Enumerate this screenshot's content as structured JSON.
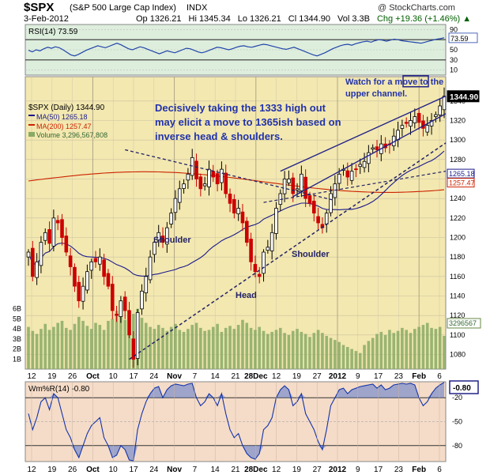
{
  "header": {
    "symbol": "$SPX",
    "name": "(S&P 500 Large Cap Index)",
    "exchange": "INDX",
    "brand": "@ StockCharts.com",
    "date": "3-Feb-2012",
    "open": "Op 1326.21",
    "high": "Hi 1345.34",
    "low": "Lo 1326.21",
    "close": "Cl 1344.90",
    "volume": "Vol 3.3B",
    "change": "Chg +19.36 (+1.46%)",
    "change_arrow": "▲"
  },
  "colors": {
    "up": "#000000",
    "down": "#cc0000",
    "ma50": "#1a1a8c",
    "ma200": "#cc2200",
    "volume": "#88aa66",
    "price_bg": "#f3e8b0",
    "rsi_bg": "#ddeedd",
    "wmr_bg": "#f5dcc8",
    "annotation_text": "#2233aa"
  },
  "chart_data": [
    {
      "type": "line",
      "title": "RSI(14) 73.59",
      "panel": "rsi",
      "ylim": [
        0,
        100
      ],
      "levels": [
        70,
        30
      ],
      "tick_labels": [
        "90",
        "70",
        "50",
        "30",
        "10"
      ],
      "last_value_label": "73.59",
      "values": [
        49,
        46,
        50,
        48,
        52,
        55,
        53,
        56,
        54,
        50,
        45,
        40,
        38,
        41,
        45,
        49,
        52,
        55,
        58,
        56,
        54,
        57,
        60,
        63,
        60,
        56,
        52,
        50,
        53,
        56,
        54,
        51,
        48,
        45,
        42,
        45,
        48,
        46,
        44,
        47,
        50,
        53,
        52,
        49,
        46,
        44,
        46,
        49,
        52,
        55,
        54,
        52,
        50,
        52,
        55,
        57,
        58,
        56,
        55,
        57,
        59,
        61,
        60,
        58,
        56,
        54,
        52,
        51,
        53,
        55,
        52,
        49,
        46,
        43,
        40,
        38,
        41,
        44,
        48,
        52,
        55,
        58,
        60,
        61,
        59,
        62,
        64,
        66,
        67,
        65,
        68,
        70,
        69,
        67,
        69,
        71,
        70,
        68,
        67,
        66,
        65,
        64,
        63,
        65,
        67,
        69,
        71,
        72,
        73.59
      ]
    },
    {
      "type": "line",
      "title": "$SPX (Daily) 1344.90",
      "panel": "price",
      "ylim": [
        1065,
        1365
      ],
      "y_ticks": [
        "1340",
        "1320",
        "1300",
        "1280",
        "1260",
        "1240",
        "1220",
        "1200",
        "1180",
        "1160",
        "1140",
        "1120",
        "1100",
        "1080"
      ],
      "x_ticks": [
        "12",
        "19",
        "26",
        "Oct",
        "10",
        "17",
        "24",
        "Nov",
        "7",
        "14",
        "21",
        "28Dec",
        "12",
        "19",
        "27",
        "2012",
        "9",
        "17",
        "23",
        "Feb",
        "6"
      ],
      "ohlc_close": [
        1185,
        1160,
        1175,
        1195,
        1205,
        1194,
        1220,
        1215,
        1200,
        1185,
        1170,
        1150,
        1135,
        1150,
        1165,
        1175,
        1175,
        1180,
        1160,
        1150,
        1125,
        1120,
        1135,
        1125,
        1100,
        1075,
        1123,
        1145,
        1160,
        1180,
        1195,
        1205,
        1195,
        1210,
        1225,
        1240,
        1250,
        1255,
        1265,
        1282,
        1260,
        1250,
        1255,
        1270,
        1262,
        1255,
        1270,
        1245,
        1235,
        1225,
        1230,
        1215,
        1195,
        1175,
        1165,
        1160,
        1185,
        1190,
        1205,
        1230,
        1245,
        1260,
        1260,
        1245,
        1250,
        1265,
        1240,
        1235,
        1225,
        1215,
        1210,
        1225,
        1245,
        1255,
        1265,
        1270,
        1262,
        1268,
        1270,
        1275,
        1278,
        1287,
        1292,
        1290,
        1296,
        1292,
        1295,
        1304,
        1310,
        1315,
        1317,
        1320,
        1324,
        1318,
        1312,
        1315,
        1320,
        1326,
        1335,
        1344.9
      ],
      "ma50_label": "MA(50) 1265.18",
      "ma200_label": "MA(200) 1257.47",
      "volume_label": "Volume 3,296,567,808",
      "ma50_last": "1265.18",
      "ma200_last": "1257.47",
      "price_last": "1344.90",
      "volume_last": "3296567",
      "volume_ticks": [
        "6B",
        "5B",
        "4B",
        "3B",
        "2B",
        "1B"
      ],
      "volume_values_billion": [
        4.2,
        3.8,
        3.5,
        4.0,
        4.5,
        3.9,
        4.2,
        4.6,
        4.8,
        4.1,
        3.9,
        4.5,
        5.2,
        4.8,
        4.3,
        4.0,
        4.6,
        4.4,
        3.9,
        4.8,
        5.0,
        5.8,
        5.3,
        4.9,
        4.7,
        5.5,
        6.0,
        5.1,
        4.6,
        4.2,
        4.0,
        4.4,
        4.1,
        3.8,
        4.2,
        4.5,
        3.9,
        3.7,
        4.0,
        4.4,
        4.6,
        4.1,
        3.8,
        3.9,
        4.2,
        4.5,
        3.7,
        4.1,
        4.3,
        4.0,
        4.4,
        4.9,
        4.6,
        4.1,
        3.9,
        4.2,
        3.8,
        3.5,
        3.7,
        3.9,
        4.1,
        3.6,
        3.4,
        3.8,
        4.0,
        3.7,
        3.5,
        3.2,
        3.6,
        3.9,
        3.6,
        3.3,
        3.1,
        2.9,
        2.7,
        2.4,
        2.2,
        2.0,
        1.8,
        1.6,
        2.4,
        2.8,
        3.1,
        3.5,
        3.7,
        3.4,
        3.9,
        3.6,
        3.8,
        4.1,
        3.9,
        3.6,
        4.0,
        4.2,
        4.4,
        4.6,
        4.1,
        4.0,
        4.2,
        3.3
      ]
    },
    {
      "type": "line",
      "title": "Wm%R(14) -0.80",
      "panel": "williams",
      "ylim": [
        -100,
        0
      ],
      "tick_labels": [
        "-20",
        "-50",
        "-80"
      ],
      "last_value_label": "-0.80",
      "values": [
        -40,
        -60,
        -45,
        -25,
        -20,
        -35,
        -15,
        -20,
        -40,
        -60,
        -70,
        -85,
        -95,
        -80,
        -65,
        -55,
        -50,
        -45,
        -70,
        -80,
        -95,
        -92,
        -80,
        -85,
        -98,
        -99,
        -60,
        -40,
        -25,
        -15,
        -8,
        -6,
        -20,
        -10,
        -5,
        -3,
        -4,
        -5,
        -3,
        -2,
        -20,
        -30,
        -25,
        -15,
        -20,
        -30,
        -15,
        -40,
        -60,
        -70,
        -65,
        -80,
        -90,
        -95,
        -97,
        -90,
        -60,
        -55,
        -45,
        -20,
        -10,
        -5,
        -10,
        -30,
        -25,
        -15,
        -40,
        -50,
        -60,
        -75,
        -85,
        -60,
        -30,
        -20,
        -10,
        -8,
        -15,
        -10,
        -8,
        -6,
        -5,
        -4,
        -3,
        -8,
        -4,
        -10,
        -8,
        -4,
        -3,
        -2,
        -3,
        -2,
        -4,
        -20,
        -30,
        -25,
        -15,
        -8,
        -4,
        -0.8
      ]
    }
  ],
  "annotations": {
    "breakout_text": "Decisively taking the 1333 high out may elicit a move to 1365ish based on inverse head & shoulders.",
    "channel_text": "Watch for a move to the upper channel.",
    "left_shoulder": "Shoulder",
    "head": "Head",
    "right_shoulder": "Shoulder"
  }
}
